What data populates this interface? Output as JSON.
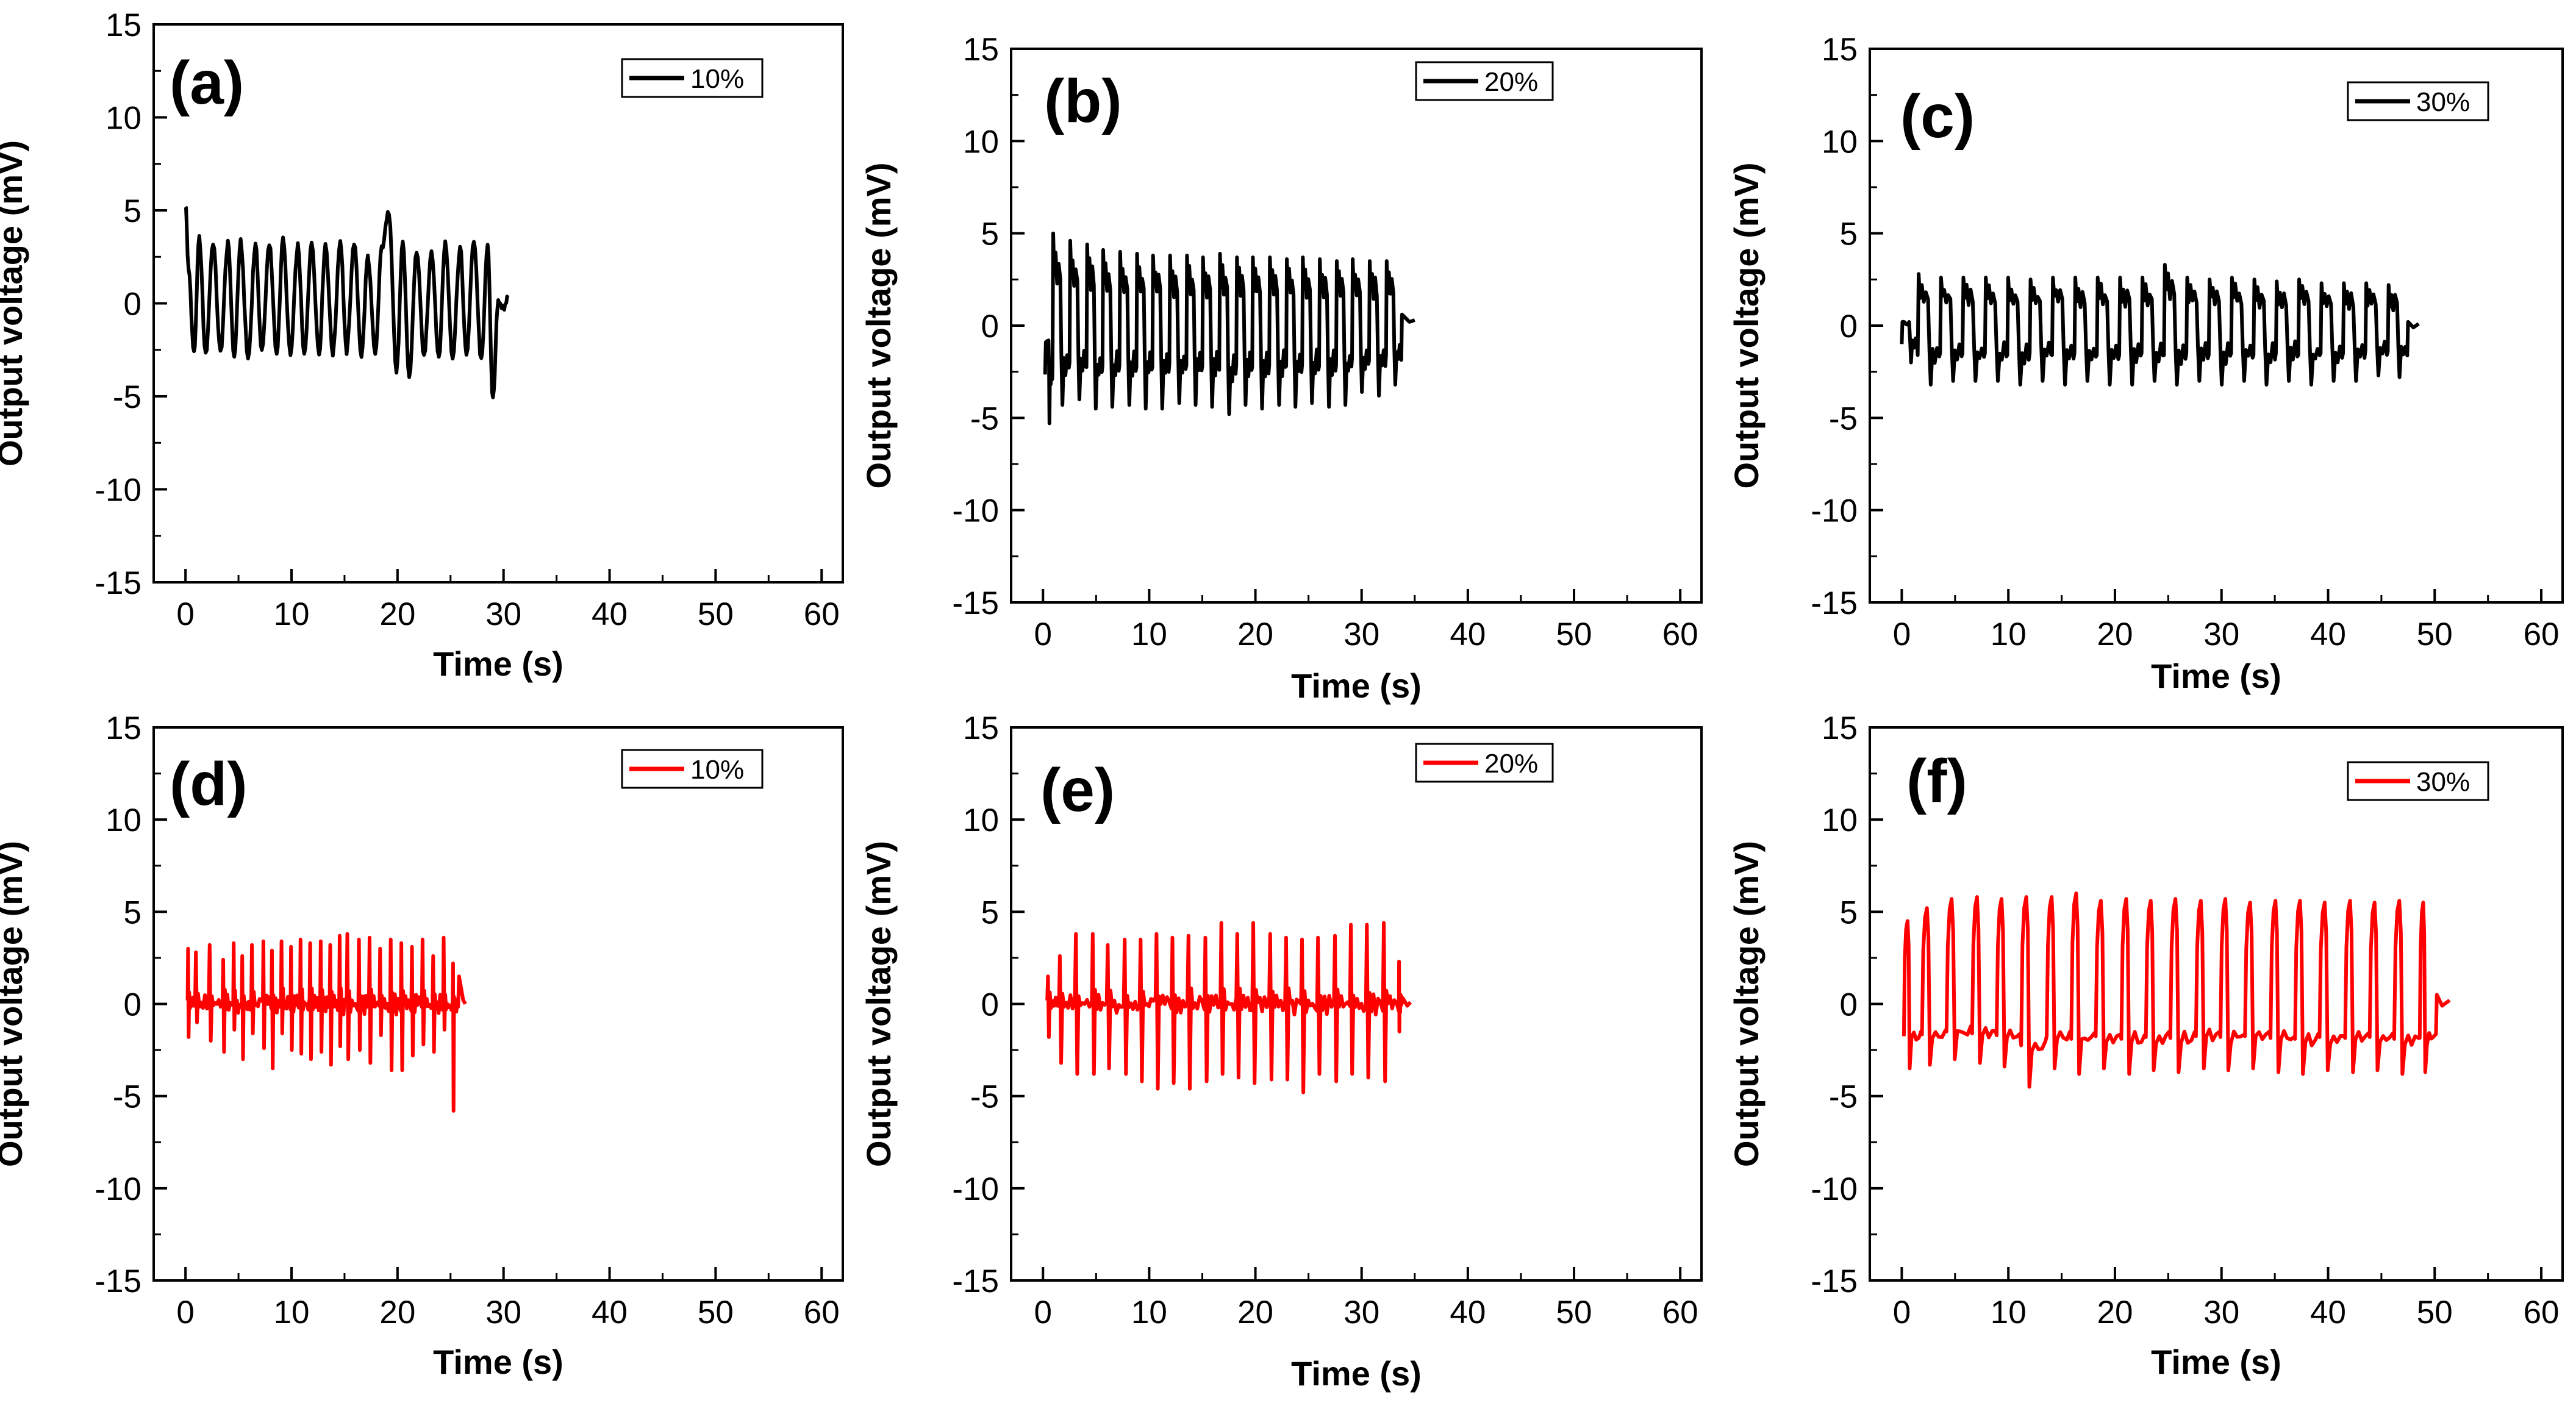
{
  "chart_data": [
    {
      "panel": "(a)",
      "type": "line",
      "xlabel": "Time (s)",
      "ylabel": "Output voltage (mV)",
      "xlim": [
        -3,
        62
      ],
      "ylim": [
        -15,
        15
      ],
      "xticks": [
        0,
        10,
        20,
        30,
        40,
        50,
        60
      ],
      "yticks": [
        -15,
        -10,
        -5,
        0,
        5,
        10,
        15
      ],
      "legend": "10%",
      "color": "#000000",
      "series": [
        {
          "name": "10%",
          "waveform": "sine",
          "x": [
            0,
            0.3,
            0.8,
            1.3,
            1.9,
            2.6,
            3.3,
            4.0,
            4.6,
            5.2,
            5.9,
            6.6,
            7.2,
            7.9,
            8.6,
            9.2,
            9.9,
            10.6,
            11.2,
            11.9,
            12.6,
            13.2,
            13.9,
            14.6,
            15.2,
            15.9,
            16.6,
            17.2,
            17.9,
            18.5,
            19.2,
            19.9,
            20.5,
            21.1,
            21.8,
            22.5,
            23.2,
            23.9,
            24.5,
            25.2,
            25.9,
            26.5,
            27.2,
            27.9,
            28.5,
            29.0,
            29.5,
            30.0,
            30.4
          ],
          "y": [
            5.3,
            1.8,
            -2.7,
            3.5,
            -2.8,
            3.3,
            -2.6,
            3.2,
            -2.8,
            3.3,
            -3.0,
            3.1,
            -2.6,
            3.2,
            -2.7,
            3.4,
            -2.8,
            3.1,
            -2.8,
            3.3,
            -2.7,
            3.2,
            -2.7,
            3.4,
            -2.6,
            3.3,
            -2.8,
            2.5,
            -2.8,
            3.0,
            4.9,
            -3.7,
            3.2,
            -4.0,
            2.8,
            -2.8,
            2.8,
            -2.9,
            3.3,
            -2.9,
            3.0,
            -2.8,
            3.4,
            -3.1,
            3.0,
            -5.2,
            0.2,
            -0.3,
            0.3
          ]
        }
      ]
    },
    {
      "panel": "(b)",
      "type": "line",
      "xlabel": "Time (s)",
      "ylabel": "Output voltage (mV)",
      "xlim": [
        -3,
        62
      ],
      "ylim": [
        -15,
        15
      ],
      "xticks": [
        0,
        10,
        20,
        30,
        40,
        50,
        60
      ],
      "yticks": [
        -15,
        -10,
        -5,
        0,
        5,
        10,
        15
      ],
      "legend": "20%",
      "color": "#000000",
      "series": [
        {
          "name": "20%",
          "waveform": "square",
          "x": [
            0.2,
            0.9,
            2.5,
            4.1,
            5.6,
            7.2,
            8.8,
            10.3,
            11.9,
            13.5,
            15.0,
            16.6,
            18.2,
            19.7,
            21.3,
            22.9,
            24.4,
            26.0,
            27.6,
            29.1,
            30.7,
            32.3
          ],
          "amp_high": [
            -1.8,
            5.0,
            4.6,
            4.4,
            4.1,
            4.0,
            3.9,
            3.8,
            3.8,
            3.8,
            3.7,
            3.9,
            3.7,
            3.7,
            3.7,
            3.6,
            3.7,
            3.6,
            3.5,
            3.6,
            3.5,
            3.5
          ],
          "amp_low": [
            -5.3,
            -4.3,
            -4.0,
            -4.5,
            -4.4,
            -4.3,
            -4.5,
            -4.5,
            -4.2,
            -4.3,
            -4.4,
            -4.8,
            -4.3,
            -4.5,
            -4.3,
            -4.4,
            -4.2,
            -4.4,
            -4.3,
            -3.6,
            -3.8,
            -3.2
          ],
          "tail": {
            "x": [
              33.8,
              34.5,
              35.0
            ],
            "y": [
              0.6,
              0.2,
              0.3
            ]
          }
        }
      ]
    },
    {
      "panel": "(c)",
      "type": "line",
      "xlabel": "Time (s)",
      "ylabel": "Output voltage (mV)",
      "xlim": [
        -3,
        62
      ],
      "ylim": [
        -15,
        15
      ],
      "xticks": [
        0,
        10,
        20,
        30,
        40,
        50,
        60
      ],
      "yticks": [
        -15,
        -10,
        -5,
        0,
        5,
        10,
        15
      ],
      "legend": "30%",
      "color": "#000000",
      "series": [
        {
          "name": "30%",
          "waveform": "square",
          "x": [
            0,
            1.5,
            3.6,
            5.7,
            7.8,
            9.9,
            12.0,
            14.1,
            16.2,
            18.3,
            20.4,
            22.5,
            24.6,
            26.7,
            28.8,
            30.9,
            33.0,
            35.1,
            37.2,
            39.3,
            41.4,
            43.5,
            45.6
          ],
          "amp_high": [
            0.2,
            2.8,
            2.6,
            2.6,
            2.6,
            2.6,
            2.5,
            2.6,
            2.6,
            2.6,
            2.6,
            2.6,
            3.3,
            2.6,
            2.5,
            2.6,
            2.5,
            2.4,
            2.5,
            2.3,
            2.3,
            2.3,
            2.2
          ],
          "amp_low": [
            -2.0,
            -3.2,
            -3.0,
            -3.0,
            -3.0,
            -3.2,
            -3.0,
            -3.2,
            -3.0,
            -3.2,
            -3.2,
            -3.0,
            -3.2,
            -3.0,
            -3.2,
            -3.0,
            -3.2,
            -3.0,
            -3.2,
            -3.0,
            -3.0,
            -2.7,
            -2.8
          ],
          "tail": {
            "x": [
              47.5,
              48.0,
              48.5
            ],
            "y": [
              0.2,
              -0.1,
              0.1
            ]
          }
        }
      ]
    },
    {
      "panel": "(d)",
      "type": "line",
      "xlabel": "Time (s)",
      "ylabel": "Output voltage (mV)",
      "xlim": [
        -3,
        62
      ],
      "ylim": [
        -15,
        15
      ],
      "xticks": [
        0,
        10,
        20,
        30,
        40,
        50,
        60
      ],
      "yticks": [
        -15,
        -10,
        -5,
        0,
        5,
        10,
        15
      ],
      "legend": "10%",
      "color": "#ff0000",
      "series": [
        {
          "name": "10%",
          "waveform": "spike",
          "x": [
            0.2,
            0.9,
            2.2,
            3.5,
            4.5,
            5.3,
            6.2,
            7.3,
            8.1,
            9.0,
            9.9,
            10.8,
            11.7,
            12.7,
            13.6,
            14.5,
            15.2,
            16.3,
            17.3,
            18.3,
            19.3,
            20.3,
            21.3,
            22.3,
            23.3,
            24.3,
            25.2
          ],
          "amp_high": [
            3.0,
            2.8,
            3.2,
            2.4,
            3.3,
            2.6,
            3.2,
            3.4,
            2.9,
            3.4,
            3.1,
            3.5,
            3.3,
            3.4,
            3.2,
            3.7,
            3.8,
            3.5,
            3.6,
            3.0,
            3.5,
            3.3,
            3.1,
            3.5,
            2.6,
            3.6,
            2.2
          ],
          "amp_low": [
            -1.8,
            -1.0,
            -2.0,
            -2.6,
            -1.4,
            -3.0,
            -1.6,
            -2.4,
            -3.5,
            -1.6,
            -2.5,
            -2.7,
            -3.0,
            -2.6,
            -3.3,
            -2.3,
            -3.0,
            -2.5,
            -3.2,
            -1.7,
            -3.6,
            -3.6,
            -2.8,
            -2.2,
            -2.6,
            -1.4,
            -5.8
          ],
          "tail": {
            "x": [
              25.8,
              26.2,
              26.4
            ],
            "y": [
              1.5,
              0.2,
              0.0
            ]
          }
        }
      ]
    },
    {
      "panel": "(e)",
      "type": "line",
      "xlabel": "Time (s)",
      "ylabel": "Output voltage (mV)",
      "xlim": [
        -3,
        62
      ],
      "ylim": [
        -15,
        15
      ],
      "xticks": [
        0,
        10,
        20,
        30,
        40,
        50,
        60
      ],
      "yticks": [
        -15,
        -10,
        -5,
        0,
        5,
        10,
        15
      ],
      "legend": "20%",
      "color": "#ff0000",
      "series": [
        {
          "name": "20%",
          "waveform": "spike",
          "x": [
            0.4,
            1.5,
            3.0,
            4.6,
            6.0,
            7.6,
            9.1,
            10.6,
            12.1,
            13.6,
            15.2,
            16.7,
            18.2,
            19.7,
            21.3,
            22.8,
            24.3,
            25.8,
            27.4,
            28.9,
            30.4,
            32.0,
            33.5
          ],
          "amp_high": [
            1.5,
            2.6,
            3.8,
            3.8,
            3.2,
            3.5,
            3.5,
            3.8,
            3.6,
            3.7,
            3.6,
            4.4,
            3.8,
            4.4,
            3.8,
            3.6,
            3.5,
            3.6,
            3.7,
            4.3,
            4.3,
            4.4,
            2.3
          ],
          "amp_low": [
            -1.8,
            -3.2,
            -3.8,
            -3.8,
            -3.5,
            -3.8,
            -4.2,
            -4.6,
            -4.3,
            -4.6,
            -4.2,
            -3.8,
            -4.0,
            -4.3,
            -4.1,
            -4.1,
            -4.8,
            -3.8,
            -4.2,
            -3.8,
            -4.0,
            -4.2,
            -1.5
          ],
          "tail": {
            "x": [
              33.9,
              34.3,
              34.6
            ],
            "y": [
              0.3,
              -0.1,
              0.1
            ]
          }
        }
      ]
    },
    {
      "panel": "(f)",
      "type": "line",
      "xlabel": "Time (s)",
      "ylabel": "Output voltage (mV)",
      "xlim": [
        -3,
        62
      ],
      "ylim": [
        -15,
        15
      ],
      "xticks": [
        0,
        10,
        20,
        30,
        40,
        50,
        60
      ],
      "yticks": [
        -15,
        -10,
        -5,
        0,
        5,
        10,
        15
      ],
      "legend": "30%",
      "color": "#ff0000",
      "series": [
        {
          "name": "30%",
          "waveform": "sawtooth",
          "x": [
            0.2,
            1.9,
            4.2,
            6.6,
            8.9,
            11.2,
            13.6,
            15.9,
            18.2,
            20.6,
            22.9,
            25.2,
            27.6,
            29.9,
            32.2,
            34.6,
            36.9,
            39.2,
            41.6,
            43.9,
            46.2,
            48.6
          ],
          "amp_high": [
            4.5,
            5.2,
            5.7,
            5.8,
            5.7,
            5.8,
            5.8,
            6.0,
            5.6,
            5.7,
            5.6,
            5.7,
            5.6,
            5.7,
            5.5,
            5.6,
            5.6,
            5.5,
            5.6,
            5.5,
            5.6,
            5.5
          ],
          "amp_low": [
            -3.5,
            -3.3,
            -3.0,
            -3.2,
            -3.4,
            -4.5,
            -3.5,
            -3.8,
            -3.5,
            -3.8,
            -3.6,
            -3.7,
            -3.5,
            -3.6,
            -3.5,
            -3.7,
            -3.8,
            -3.6,
            -3.7,
            -3.6,
            -3.8,
            -3.7
          ],
          "tail": {
            "x": [
              50.2,
              50.7,
              51.4
            ],
            "y": [
              0.5,
              -0.1,
              0.2
            ]
          }
        }
      ]
    }
  ]
}
